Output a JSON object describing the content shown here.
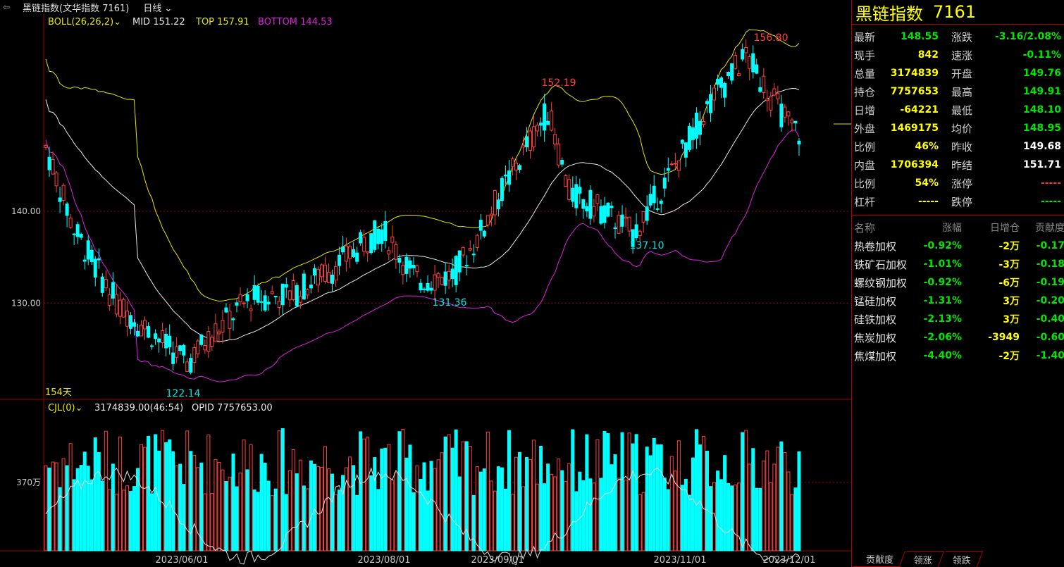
{
  "header": {
    "instrument": "黑链指数(文华指数 7161)",
    "period": "日线"
  },
  "indicators": {
    "boll_label": "BOLL(26,26,2)",
    "mid": "MID 151.22",
    "top": "TOP 157.91",
    "bottom": "BOTTOM 144.53",
    "days": "154天",
    "vol_label": "CJL(0)",
    "vol_value": "3174839.00(46:54)",
    "opid": "OPID 7757653.00"
  },
  "colors": {
    "up": "#ff4040",
    "down": "#00ffff",
    "mid": "#e8e8e8",
    "top": "#e6e600",
    "bottom": "#e020e0",
    "grid": "#a00000"
  },
  "chart_data": {
    "type": "candlestick",
    "y_labels": [
      "140.00",
      "130.00"
    ],
    "vol_label": "370万",
    "x_labels": [
      "2023/06/01",
      "2023/08/01",
      "2023/09/01",
      "2023/11/01",
      "2023/12/01"
    ],
    "annotations": [
      "122.14",
      "131.36",
      "152.19",
      "137.10",
      "156.80"
    ],
    "price_range": [
      119.5,
      161.5
    ],
    "key_points": {
      "low": 122.14,
      "mid_low": 131.36,
      "high1": 152.19,
      "low2": 137.1,
      "high2": 156.8,
      "last": 148.55
    },
    "days": 154
  },
  "panel": {
    "title": "黑链指数",
    "code": "7161",
    "quote": [
      {
        "l1": "最新",
        "v1": "148.55",
        "c1": "g",
        "l2": "涨跌",
        "v2": "-3.16/2.08%",
        "c2": "g"
      },
      {
        "l1": "现手",
        "v1": "842",
        "c1": "y",
        "l2": "速涨",
        "v2": "-0.11%",
        "c2": "g"
      },
      {
        "l1": "总量",
        "v1": "3174839",
        "c1": "y",
        "l2": "开盘",
        "v2": "149.76",
        "c2": "g"
      },
      {
        "l1": "持仓",
        "v1": "7757653",
        "c1": "y",
        "l2": "最高",
        "v2": "149.91",
        "c2": "g"
      },
      {
        "l1": "日增",
        "v1": "-64221",
        "c1": "y",
        "l2": "最低",
        "v2": "148.10",
        "c2": "g"
      },
      {
        "l1": "外盘",
        "v1": "1469175",
        "c1": "y",
        "l2": "均价",
        "v2": "148.95",
        "c2": "g"
      },
      {
        "l1": "比例",
        "v1": "46%",
        "c1": "y",
        "l2": "昨收",
        "v2": "149.68",
        "c2": "w"
      },
      {
        "l1": "内盘",
        "v1": "1706394",
        "c1": "y",
        "l2": "昨结",
        "v2": "151.71",
        "c2": "w"
      },
      {
        "l1": "比例",
        "v1": "54%",
        "c1": "y",
        "l2": "涨停",
        "v2": "-----",
        "c2": "r"
      },
      {
        "l1": "杠杆",
        "v1": "-----",
        "c1": "y",
        "l2": "跌停",
        "v2": "-----",
        "c2": "g"
      }
    ],
    "contrib_headers": [
      "名称",
      "涨幅",
      "日增仓",
      "贡献度"
    ],
    "contrib": [
      {
        "name": "热卷加权",
        "pct": "-0.92%",
        "inc": "-2万",
        "con": "-0.17"
      },
      {
        "name": "铁矿石加权",
        "pct": "-1.01%",
        "inc": "-3万",
        "con": "-0.18"
      },
      {
        "name": "螺纹钢加权",
        "pct": "-0.92%",
        "inc": "-6万",
        "con": "-0.19"
      },
      {
        "name": "锰硅加权",
        "pct": "-1.31%",
        "inc": "3万",
        "con": "-0.20"
      },
      {
        "name": "硅铁加权",
        "pct": "-2.13%",
        "inc": "3万",
        "con": "-0.40"
      },
      {
        "name": "焦炭加权",
        "pct": "-2.06%",
        "inc": "-3949",
        "con": "-0.60"
      },
      {
        "name": "焦煤加权",
        "pct": "-4.40%",
        "inc": "-2万",
        "con": "-1.40"
      }
    ],
    "tabs": [
      "贡献度",
      "领涨",
      "领跌"
    ]
  }
}
